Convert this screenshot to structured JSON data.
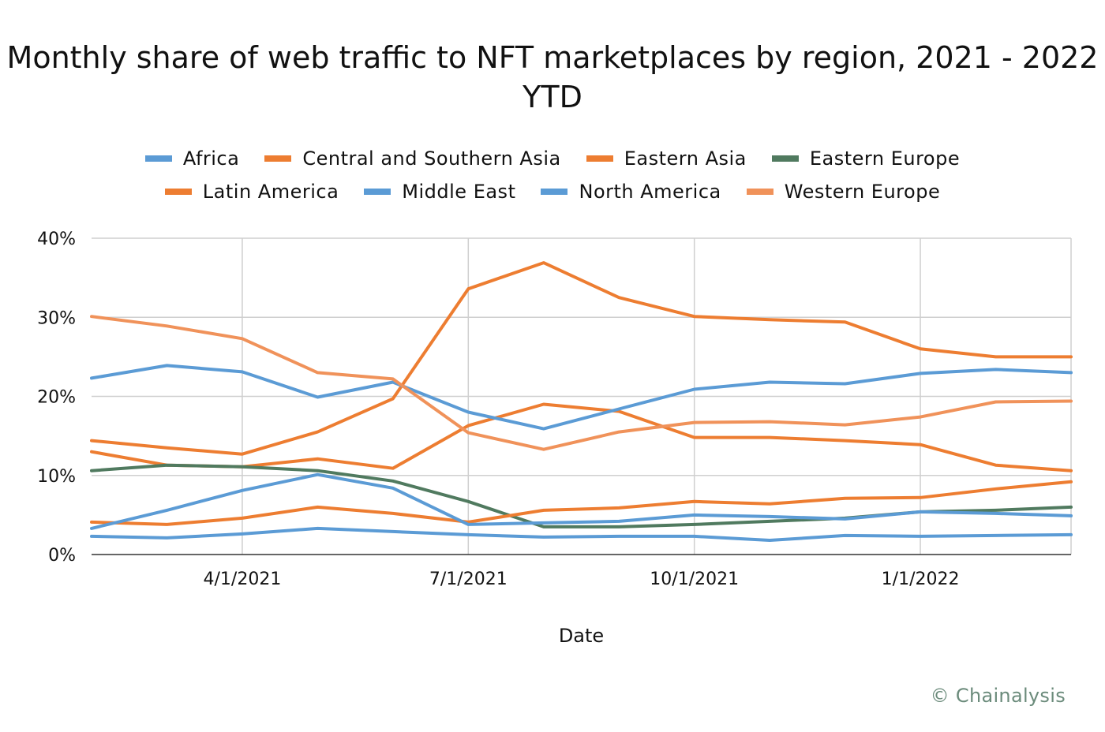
{
  "chart_data": {
    "type": "line",
    "title": "Monthly share of web traffic to NFT marketplaces by region, 2021 - 2022 YTD",
    "xlabel": "Date",
    "ylabel": "",
    "x": [
      "2/1/2021",
      "3/1/2021",
      "4/1/2021",
      "5/1/2021",
      "6/1/2021",
      "7/1/2021",
      "8/1/2021",
      "9/1/2021",
      "10/1/2021",
      "11/1/2021",
      "12/1/2021",
      "1/1/2022",
      "2/1/2022",
      "3/1/2022"
    ],
    "x_tick_labels": [
      "4/1/2021",
      "7/1/2021",
      "10/1/2021",
      "1/1/2022"
    ],
    "y_tick_labels": [
      "0%",
      "10%",
      "20%",
      "30%",
      "40%"
    ],
    "ylim": [
      0,
      40
    ],
    "y_unit": "%",
    "grid": true,
    "legend_position": "top",
    "series": [
      {
        "name": "Africa",
        "color": "#5b9bd5",
        "values": [
          2.3,
          2.1,
          2.6,
          3.3,
          2.9,
          2.5,
          2.2,
          2.3,
          2.3,
          1.8,
          2.4,
          2.3,
          2.4,
          2.5
        ]
      },
      {
        "name": "Central and Southern Asia",
        "color": "#ed7d31",
        "values": [
          14.4,
          13.5,
          12.7,
          15.5,
          19.7,
          33.6,
          36.9,
          32.5,
          30.1,
          29.7,
          29.4,
          26.0,
          25.0,
          25.0
        ]
      },
      {
        "name": "Eastern Asia",
        "color": "#ed7d31",
        "values": [
          13.0,
          11.3,
          11.1,
          12.1,
          10.9,
          16.3,
          19.0,
          18.1,
          14.8,
          14.8,
          14.4,
          13.9,
          11.3,
          10.6
        ]
      },
      {
        "name": "Eastern Europe",
        "color": "#507a5f",
        "values": [
          10.6,
          11.3,
          11.1,
          10.6,
          9.3,
          6.7,
          3.5,
          3.5,
          3.8,
          4.2,
          4.6,
          5.4,
          5.6,
          6.0
        ]
      },
      {
        "name": "Latin America",
        "color": "#ed7d31",
        "values": [
          4.1,
          3.8,
          4.6,
          6.0,
          5.2,
          4.1,
          5.6,
          5.9,
          6.7,
          6.4,
          7.1,
          7.2,
          8.3,
          9.2
        ]
      },
      {
        "name": "Middle East",
        "color": "#5b9bd5",
        "values": [
          3.3,
          5.6,
          8.1,
          10.1,
          8.4,
          3.8,
          4.0,
          4.2,
          5.0,
          4.8,
          4.5,
          5.4,
          5.2,
          4.9
        ]
      },
      {
        "name": "North America",
        "color": "#5b9bd5",
        "values": [
          22.3,
          23.9,
          23.1,
          19.9,
          21.8,
          18.0,
          15.9,
          18.4,
          20.9,
          21.8,
          21.6,
          22.9,
          23.4,
          23.0
        ]
      },
      {
        "name": "Western Europe",
        "color": "#f0925a",
        "values": [
          30.1,
          28.9,
          27.3,
          23.0,
          22.2,
          15.4,
          13.3,
          15.5,
          16.7,
          16.8,
          16.4,
          17.4,
          19.3,
          19.4
        ]
      }
    ]
  },
  "watermark": "© Chainalysis"
}
